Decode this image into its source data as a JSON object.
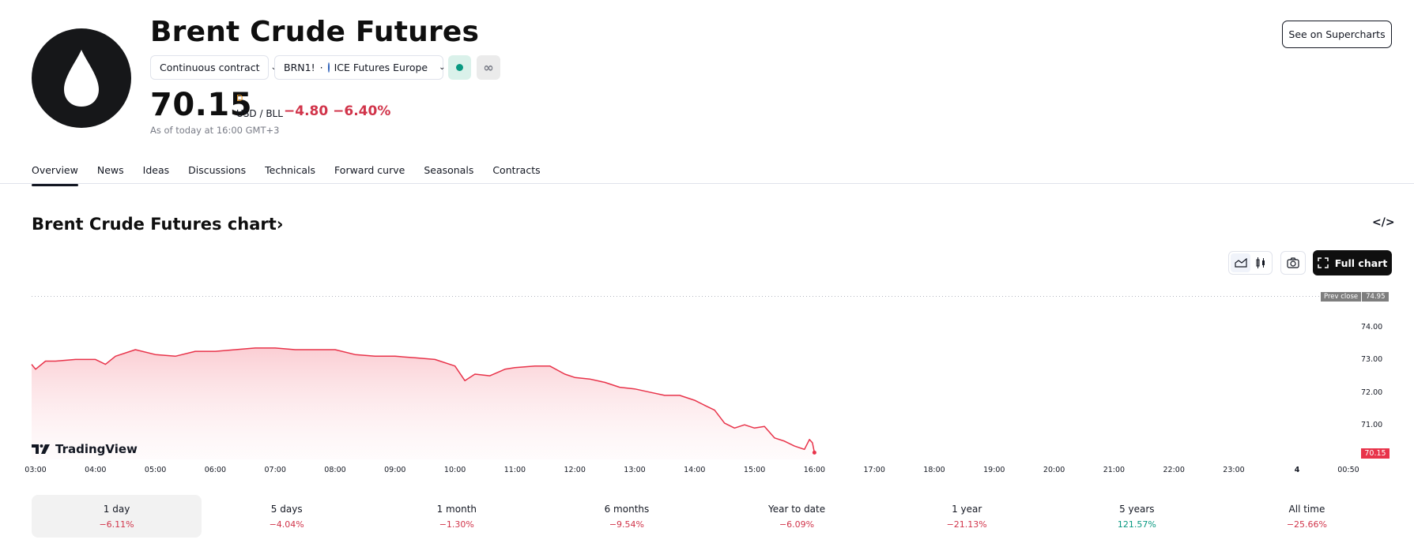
{
  "header": {
    "logo_icon": "oil-drop-icon",
    "title": "Brent Crude Futures",
    "contract_dropdown": "Continuous contract",
    "symbol": "BRN1!",
    "exchange": "ICE Futures Europe",
    "market_status_color": "#089981",
    "price": "70.15",
    "price_flag": "D",
    "currency": "USD / BLL",
    "change": "−4.80",
    "change_percent": "−6.40%",
    "as_of": "As of today at 16:00 GMT+3",
    "supercharts_button": "See on Supercharts"
  },
  "tabs": [
    {
      "label": "Overview",
      "active": true
    },
    {
      "label": "News"
    },
    {
      "label": "Ideas"
    },
    {
      "label": "Discussions"
    },
    {
      "label": "Technicals"
    },
    {
      "label": "Forward curve"
    },
    {
      "label": "Seasonals"
    },
    {
      "label": "Contracts"
    }
  ],
  "chart_section": {
    "title": "Brent Crude Futures chart›",
    "full_chart_button": "Full chart",
    "watermark": "TradingView"
  },
  "colors": {
    "line": "#e8334a",
    "negative": "#d1344a",
    "positive": "#089981",
    "prev_close_tag": "#7e7e7e"
  },
  "chart_data": {
    "type": "area",
    "title": "Brent Crude Futures chart",
    "xlabel": "",
    "ylabel": "USD / BLL",
    "x_ticks": [
      "03:00",
      "04:00",
      "05:00",
      "06:00",
      "07:00",
      "08:00",
      "09:00",
      "10:00",
      "11:00",
      "12:00",
      "13:00",
      "14:00",
      "15:00",
      "16:00",
      "17:00",
      "18:00",
      "19:00",
      "20:00",
      "21:00",
      "22:00",
      "23:00",
      "4",
      "00:50"
    ],
    "y_ticks": [
      "74.00",
      "73.00",
      "72.00",
      "71.00"
    ],
    "ylim": [
      70.0,
      75.2
    ],
    "grid": false,
    "prev_close": {
      "label": "Prev close",
      "value": "74.95"
    },
    "last_value": "70.15",
    "series": [
      {
        "name": "BRN1!",
        "x": [
          "02:55",
          "03:00",
          "03:10",
          "03:20",
          "03:40",
          "04:00",
          "04:10",
          "04:20",
          "04:40",
          "05:00",
          "05:20",
          "05:40",
          "06:00",
          "06:20",
          "06:40",
          "07:00",
          "07:20",
          "07:40",
          "08:00",
          "08:20",
          "08:40",
          "09:00",
          "09:20",
          "09:40",
          "10:00",
          "10:10",
          "10:20",
          "10:35",
          "10:50",
          "11:00",
          "11:20",
          "11:35",
          "11:50",
          "12:00",
          "12:15",
          "12:30",
          "12:45",
          "13:00",
          "13:15",
          "13:30",
          "13:45",
          "14:00",
          "14:10",
          "14:20",
          "14:30",
          "14:40",
          "14:50",
          "15:00",
          "15:10",
          "15:20",
          "15:30",
          "15:40",
          "15:50",
          "15:55",
          "15:58",
          "16:00"
        ],
        "values": [
          72.85,
          72.7,
          72.95,
          72.95,
          73.0,
          73.0,
          72.85,
          73.1,
          73.3,
          73.15,
          73.1,
          73.25,
          73.25,
          73.3,
          73.35,
          73.35,
          73.3,
          73.3,
          73.3,
          73.15,
          73.1,
          73.1,
          73.05,
          73.0,
          72.8,
          72.35,
          72.55,
          72.5,
          72.7,
          72.75,
          72.8,
          72.8,
          72.55,
          72.45,
          72.4,
          72.3,
          72.15,
          72.1,
          72.0,
          71.9,
          71.9,
          71.75,
          71.6,
          71.45,
          71.05,
          70.9,
          71.0,
          70.9,
          70.95,
          70.6,
          70.5,
          70.35,
          70.25,
          70.55,
          70.45,
          70.15
        ]
      }
    ],
    "periods": [
      {
        "label": "1 day",
        "value": "−6.11%",
        "sign": "neg",
        "active": true
      },
      {
        "label": "5 days",
        "value": "−4.04%",
        "sign": "neg"
      },
      {
        "label": "1 month",
        "value": "−1.30%",
        "sign": "neg"
      },
      {
        "label": "6 months",
        "value": "−9.54%",
        "sign": "neg"
      },
      {
        "label": "Year to date",
        "value": "−6.09%",
        "sign": "neg"
      },
      {
        "label": "1 year",
        "value": "−21.13%",
        "sign": "neg"
      },
      {
        "label": "5 years",
        "value": "121.57%",
        "sign": "pos"
      },
      {
        "label": "All time",
        "value": "−25.66%",
        "sign": "neg"
      }
    ]
  }
}
